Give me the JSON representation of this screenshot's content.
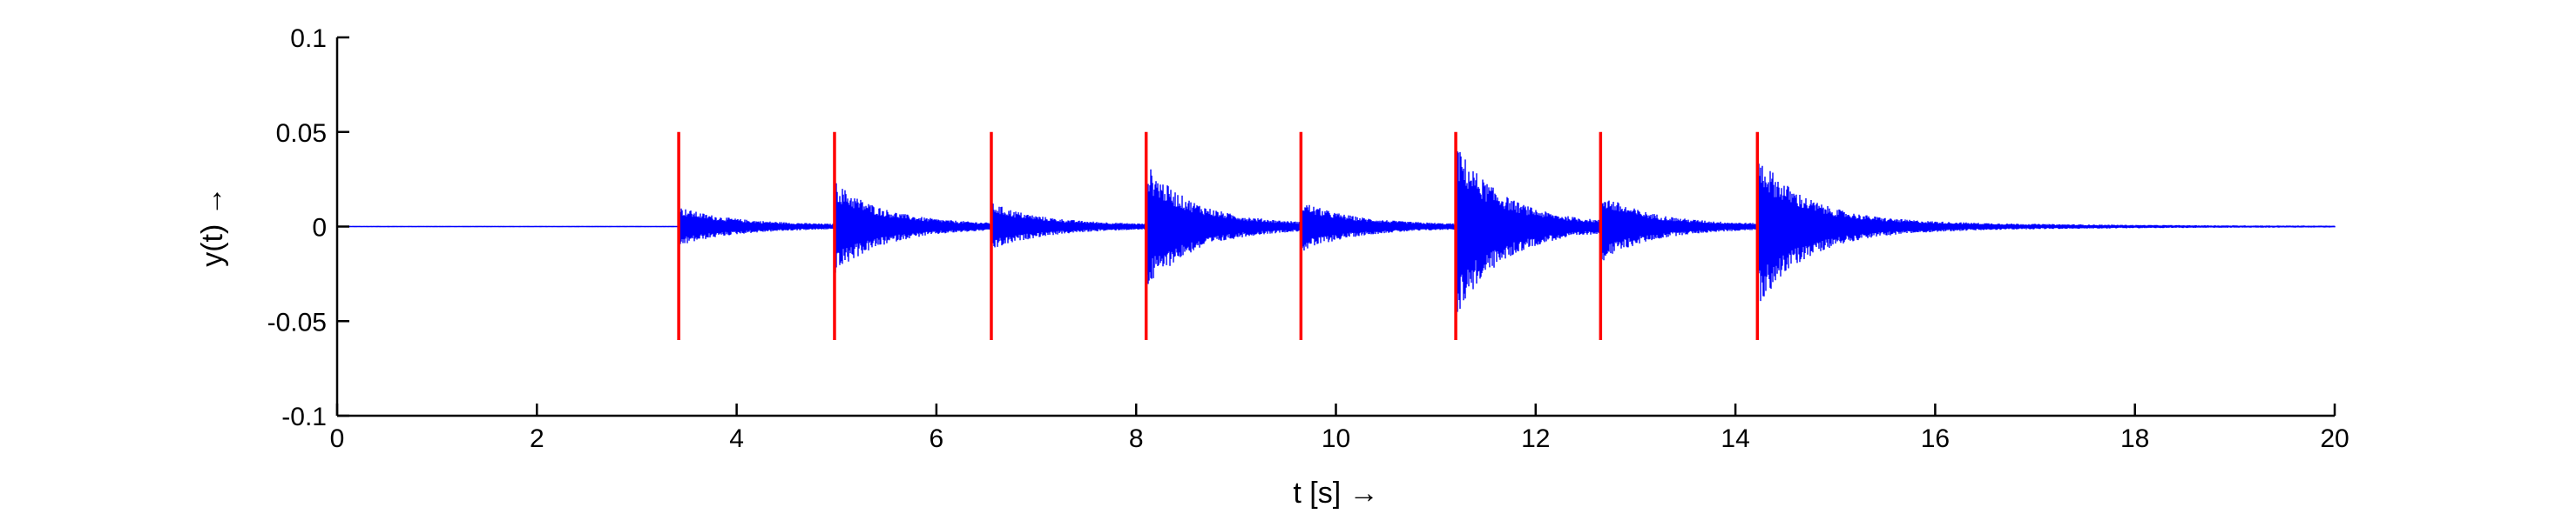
{
  "chart_data": {
    "type": "line",
    "title": "",
    "xlabel": "t [s] →",
    "ylabel": "y(t) →",
    "xlim": [
      0,
      20
    ],
    "ylim": [
      -0.1,
      0.1
    ],
    "xticks": [
      0,
      2,
      4,
      6,
      8,
      10,
      12,
      14,
      16,
      18,
      20
    ],
    "xtick_labels": [
      "0",
      "2",
      "4",
      "6",
      "8",
      "10",
      "12",
      "14",
      "16",
      "18",
      "20"
    ],
    "yticks": [
      -0.1,
      -0.05,
      0,
      0.05,
      0.1
    ],
    "ytick_labels": [
      "-0.1",
      "-0.05",
      "0",
      "0.05",
      "0.1"
    ],
    "grid": false,
    "legend": "none",
    "signal": {
      "color": "#0000ff",
      "t_end": 20,
      "onsets": [
        {
          "t": 3.42,
          "peak_pos": 0.008,
          "peak_neg": -0.008
        },
        {
          "t": 4.98,
          "peak_pos": 0.021,
          "peak_neg": -0.022
        },
        {
          "t": 6.55,
          "peak_pos": 0.01,
          "peak_neg": -0.01
        },
        {
          "t": 8.1,
          "peak_pos": 0.03,
          "peak_neg": -0.03
        },
        {
          "t": 9.65,
          "peak_pos": 0.011,
          "peak_neg": -0.011
        },
        {
          "t": 11.2,
          "peak_pos": 0.04,
          "peak_neg": -0.044
        },
        {
          "t": 12.65,
          "peak_pos": 0.015,
          "peak_neg": -0.016
        },
        {
          "t": 14.22,
          "peak_pos": 0.034,
          "peak_neg": -0.038
        }
      ]
    },
    "onset_markers": {
      "color": "#ff0000",
      "x": [
        3.42,
        4.98,
        6.55,
        8.1,
        9.65,
        11.2,
        12.65,
        14.22
      ],
      "y_range": [
        -0.06,
        0.05
      ]
    }
  }
}
